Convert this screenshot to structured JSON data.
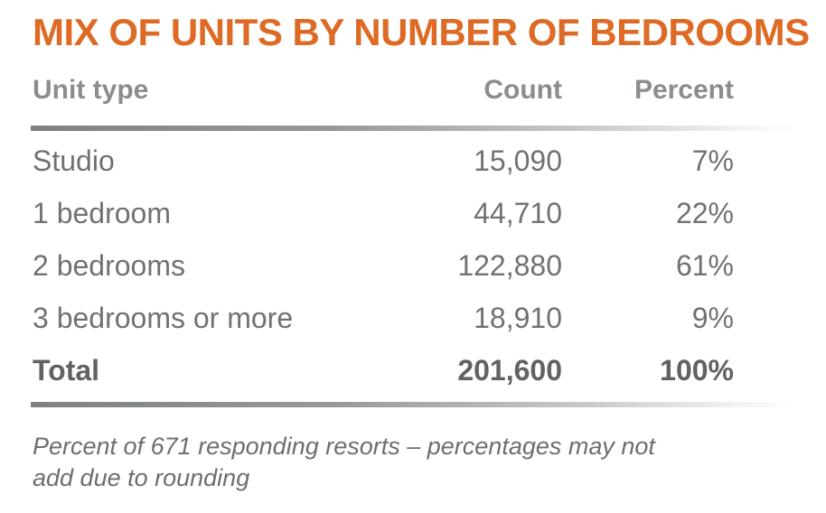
{
  "title": "MIX OF UNITS BY NUMBER OF BEDROOMS",
  "table": {
    "columns": [
      "Unit type",
      "Count",
      "Percent"
    ],
    "rows": [
      {
        "unit_type": "Studio",
        "count": "15,090",
        "percent": "7%"
      },
      {
        "unit_type": "1 bedroom",
        "count": "44,710",
        "percent": "22%"
      },
      {
        "unit_type": "2 bedrooms",
        "count": "122,880",
        "percent": "61%"
      },
      {
        "unit_type": "3 bedrooms or more",
        "count": "18,910",
        "percent": "9%"
      }
    ],
    "total": {
      "unit_type": "Total",
      "count": "201,600",
      "percent": "100%"
    }
  },
  "footnote": {
    "lines": [
      "Percent of 671 responding resorts – percentages may not",
      "add due to rounding"
    ]
  },
  "colors": {
    "title_orange": "#DE6B25",
    "header_gray": "#8A8D90",
    "row_gray": "#6F7275",
    "total_gray": "#606265",
    "footnote_gray": "#6D6E71",
    "divider_gray": "#7E8184"
  },
  "chart_data": {
    "type": "table",
    "title": "MIX OF UNITS BY NUMBER OF BEDROOMS",
    "columns": [
      "Unit type",
      "Count",
      "Percent"
    ],
    "rows": [
      [
        "Studio",
        15090,
        "7%"
      ],
      [
        "1 bedroom",
        44710,
        "22%"
      ],
      [
        "2 bedrooms",
        122880,
        "61%"
      ],
      [
        "3 bedrooms or more",
        18910,
        "9%"
      ],
      [
        "Total",
        201600,
        "100%"
      ]
    ],
    "footnote": "Percent of 671 responding resorts – percentages may not add due to rounding"
  }
}
